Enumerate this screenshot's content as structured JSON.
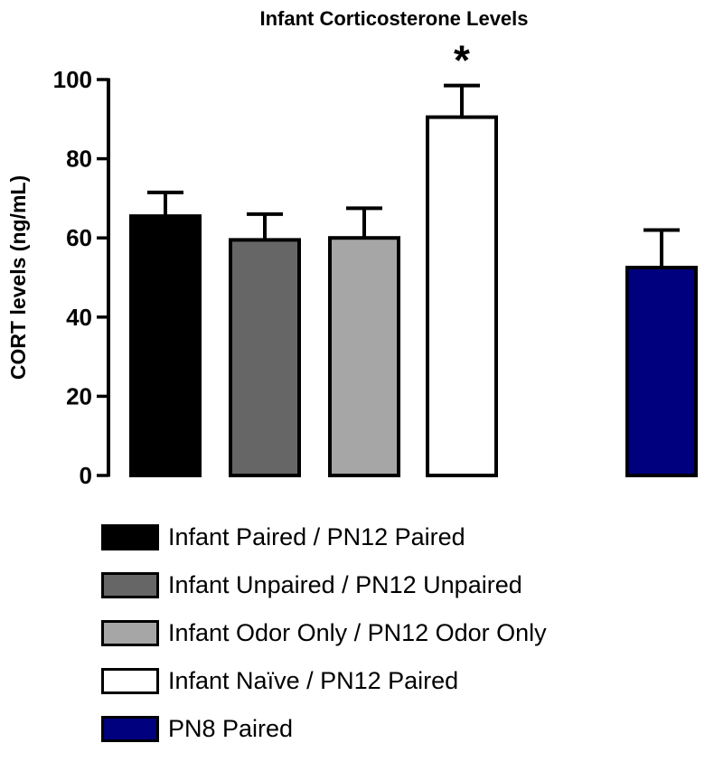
{
  "chart_data": {
    "type": "bar",
    "title": "Infant Corticosterone Levels",
    "ylabel": "CORT levels (ng/mL)",
    "xlabel": "",
    "ylim": [
      0,
      100
    ],
    "yticks": [
      0,
      20,
      40,
      60,
      80,
      100
    ],
    "categories": [
      "Infant Paired / PN12 Paired",
      "Infant Unpaired / PN12 Unpaired",
      "Infant Odor Only / PN12 Odor Only",
      "Infant Naïve / PN12 Paired",
      "PN8 Paired"
    ],
    "values": [
      65.5,
      59.5,
      60,
      90.5,
      52.5
    ],
    "errors": [
      6,
      6.5,
      7.5,
      8,
      9.5
    ],
    "colors": [
      "#000000",
      "#666666",
      "#a6a6a6",
      "#ffffff",
      "#00007f"
    ],
    "significance": [
      {
        "category_index": 3,
        "label": "*"
      }
    ],
    "legend_position": "bottom"
  }
}
